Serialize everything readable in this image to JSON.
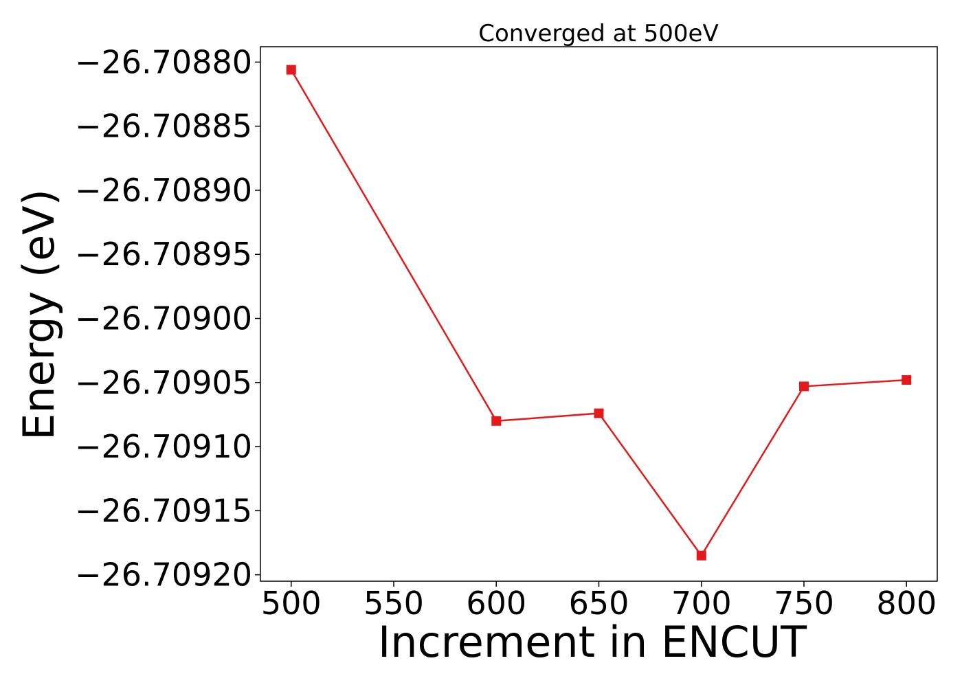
{
  "chart_data": {
    "type": "line",
    "title": "Converged at 500eV",
    "xlabel": "Increment in ENCUT",
    "ylabel": "Energy (eV)",
    "x": [
      500,
      600,
      650,
      700,
      750,
      800
    ],
    "series": [
      {
        "values": [
          -26.708806,
          -26.70908,
          -26.709074,
          -26.709185,
          -26.709053,
          -26.709048
        ],
        "color": "#e31a1c",
        "marker": "square"
      }
    ],
    "xlim": [
      485,
      815
    ],
    "ylim": [
      -26.709205,
      -26.708788
    ],
    "xticks": [
      500,
      550,
      600,
      650,
      700,
      750,
      800
    ],
    "xtick_labels": [
      "500",
      "550",
      "600",
      "650",
      "700",
      "750",
      "800"
    ],
    "yticks": [
      -26.7088,
      -26.70885,
      -26.7089,
      -26.70895,
      -26.709,
      -26.70905,
      -26.7091,
      -26.70915,
      -26.7092
    ],
    "ytick_labels": [
      "−26.70880",
      "−26.70885",
      "−26.70890",
      "−26.70895",
      "−26.70900",
      "−26.70905",
      "−26.70910",
      "−26.70915",
      "−26.70920"
    ],
    "grid": false,
    "legend": "none"
  }
}
